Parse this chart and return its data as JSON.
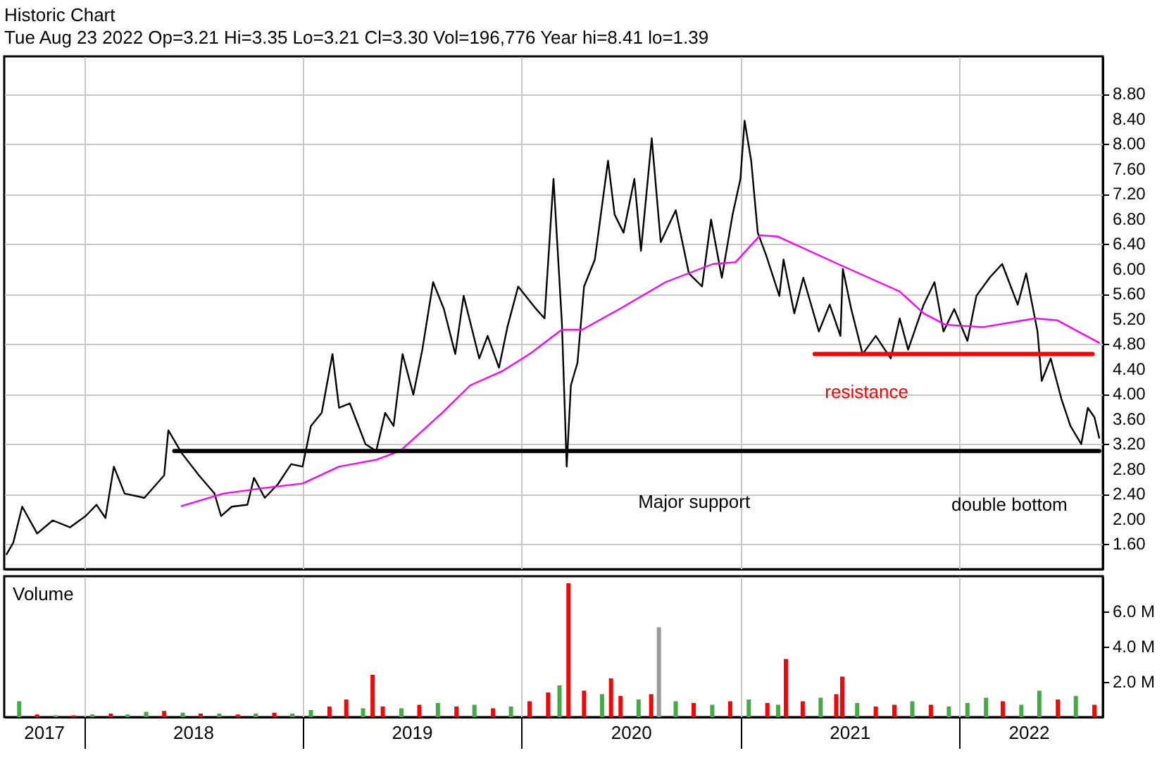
{
  "chart_data": [
    {
      "type": "line",
      "title": "Historic Chart",
      "subtitle": "Tue Aug 23 2022  Op=3.21  Hi=3.35  Lo=3.21  Cl=3.30  Vol=196,776  Year hi=8.41  lo=1.39",
      "x": [
        "2017-08-25",
        "2017-09-05",
        "2017-09-20",
        "2017-10-15",
        "2017-11-10",
        "2017-12-09",
        "2018-01-04",
        "2018-01-22",
        "2018-02-06",
        "2018-02-20",
        "2018-03-10",
        "2018-04-12",
        "2018-05-15",
        "2018-05-22",
        "2018-06-13",
        "2018-07-12",
        "2018-08-07",
        "2018-08-18",
        "2018-09-05",
        "2018-10-01",
        "2018-10-12",
        "2018-10-30",
        "2018-11-21",
        "2018-12-13",
        "2019-01-01",
        "2019-01-15",
        "2019-02-02",
        "2019-02-20",
        "2019-03-03",
        "2019-03-21",
        "2019-04-16",
        "2019-05-04",
        "2019-05-19",
        "2019-06-02",
        "2019-06-17",
        "2019-07-05",
        "2019-07-20",
        "2019-08-07",
        "2019-08-25",
        "2019-09-13",
        "2019-09-27",
        "2019-10-23",
        "2019-11-06",
        "2019-11-25",
        "2019-12-09",
        "2019-12-27",
        "2020-01-26",
        "2020-02-09",
        "2020-02-24",
        "2020-03-02",
        "2020-03-09",
        "2020-03-17",
        "2020-03-24",
        "2020-04-04",
        "2020-04-15",
        "2020-05-03",
        "2020-05-25",
        "2020-06-05",
        "2020-06-20",
        "2020-07-08",
        "2020-07-19",
        "2020-08-06",
        "2020-08-21",
        "2020-09-15",
        "2020-10-07",
        "2020-10-29",
        "2020-11-13",
        "2020-12-01",
        "2020-12-19",
        "2021-01-01",
        "2021-01-08",
        "2021-01-19",
        "2021-01-30",
        "2021-02-13",
        "2021-03-07",
        "2021-03-14",
        "2021-04-01",
        "2021-04-16",
        "2021-05-12",
        "2021-05-30",
        "2021-06-17",
        "2021-06-21",
        "2021-07-05",
        "2021-07-24",
        "2021-08-15",
        "2021-09-09",
        "2021-09-24",
        "2021-10-08",
        "2021-11-03",
        "2021-11-21",
        "2021-12-06",
        "2021-12-24",
        "2022-01-15",
        "2022-01-30",
        "2022-02-21",
        "2022-03-14",
        "2022-04-09",
        "2022-04-23",
        "2022-05-12",
        "2022-05-19",
        "2022-06-03",
        "2022-06-21",
        "2022-07-06",
        "2022-07-24",
        "2022-08-04",
        "2022-08-15",
        "2022-08-23"
      ],
      "series": [
        {
          "color": "#000000",
          "values": [
            1.44,
            1.62,
            2.2,
            1.77,
            1.98,
            1.87,
            2.05,
            2.23,
            2.02,
            2.84,
            2.41,
            2.34,
            2.7,
            3.42,
            3.06,
            2.7,
            2.41,
            2.05,
            2.2,
            2.23,
            2.66,
            2.34,
            2.56,
            2.88,
            2.84,
            3.49,
            3.7,
            4.64,
            3.78,
            3.85,
            3.2,
            3.09,
            3.7,
            3.49,
            4.64,
            3.99,
            4.71,
            5.79,
            5.36,
            4.64,
            5.57,
            4.57,
            4.93,
            4.42,
            5.07,
            5.72,
            5.36,
            5.21,
            7.44,
            6.29,
            5.14,
            2.84,
            4.14,
            4.5,
            5.72,
            6.15,
            7.73,
            6.87,
            6.58,
            7.44,
            6.29,
            8.09,
            6.43,
            6.94,
            5.93,
            5.72,
            6.79,
            5.86,
            6.87,
            7.44,
            8.37,
            7.73,
            6.58,
            6.22,
            5.57,
            6.15,
            5.29,
            5.86,
            5.0,
            5.43,
            4.93,
            6.0,
            5.36,
            4.64,
            4.93,
            4.57,
            5.21,
            4.71,
            5.43,
            5.79,
            5.0,
            5.36,
            4.85,
            5.57,
            5.86,
            6.08,
            5.43,
            5.93,
            5.0,
            4.21,
            4.57,
            3.92,
            3.49,
            3.2,
            3.78,
            3.63,
            3.3
          ]
        },
        {
          "color": "#ff00ff",
          "x": [
            "2018-06-13",
            "2018-08-22",
            "2018-10-30",
            "2019-01-01",
            "2019-03-03",
            "2019-05-04",
            "2019-06-13",
            "2019-08-22",
            "2019-10-08",
            "2019-12-01",
            "2020-01-15",
            "2020-03-06",
            "2020-03-09",
            "2020-04-12",
            "2020-06-13",
            "2020-08-29",
            "2020-11-16",
            "2020-12-24",
            "2021-02-03",
            "2021-03-04",
            "2021-06-13",
            "2021-09-24",
            "2021-11-03",
            "2021-12-09",
            "2022-02-10",
            "2022-05-08",
            "2022-06-14",
            "2022-08-23"
          ],
          "values": [
            2.21,
            2.41,
            2.5,
            2.57,
            2.84,
            2.95,
            3.09,
            3.7,
            4.14,
            4.37,
            4.64,
            5.01,
            5.03,
            5.03,
            5.36,
            5.79,
            6.08,
            6.11,
            6.54,
            6.52,
            6.08,
            5.64,
            5.29,
            5.11,
            5.07,
            5.21,
            5.18,
            4.82
          ]
        },
        {
          "color": "#000000",
          "x": [
            "2018-06-01",
            "2022-08-23"
          ],
          "values": [
            3.09,
            3.09
          ]
        },
        {
          "color": "#ff0000",
          "x": [
            "2021-05-05",
            "2022-08-12"
          ],
          "values": [
            4.64,
            4.64
          ]
        }
      ],
      "annotations": [
        "Major support",
        "resistance",
        "double bottom"
      ],
      "xlim": [
        "2017-08-21",
        "2022-08-29"
      ],
      "xticks": [
        {
          "value": "2018-01-01",
          "label": null
        },
        {
          "value": "2019-01-01",
          "label": null
        },
        {
          "value": "2020-01-01",
          "label": null
        },
        {
          "value": "2021-01-01",
          "label": null
        },
        {
          "value": "2022-01-01",
          "label": null
        }
      ],
      "ylim": [
        1.2,
        9.4
      ],
      "yticks": [
        {
          "value": 1.6,
          "label": "1.60"
        },
        {
          "value": 2,
          "label": "2.00"
        },
        {
          "value": 2.4,
          "label": "2.40"
        },
        {
          "value": 2.8,
          "label": "2.80"
        },
        {
          "value": 3.2,
          "label": "3.20"
        },
        {
          "value": 3.6,
          "label": "3.60"
        },
        {
          "value": 4,
          "label": "4.00"
        },
        {
          "value": 4.4,
          "label": "4.40"
        },
        {
          "value": 4.8,
          "label": "4.80"
        },
        {
          "value": 5.2,
          "label": "5.20"
        },
        {
          "value": 5.6,
          "label": "5.60"
        },
        {
          "value": 6,
          "label": "6.00"
        },
        {
          "value": 6.4,
          "label": "6.40"
        },
        {
          "value": 6.8,
          "label": "6.80"
        },
        {
          "value": 7.2,
          "label": "7.20"
        },
        {
          "value": 7.6,
          "label": "7.60"
        },
        {
          "value": 8,
          "label": "8.00"
        },
        {
          "value": 8.4,
          "label": "8.40"
        },
        {
          "value": 8.8,
          "label": "8.80"
        }
      ],
      "grid": true,
      "tick_labels": "y"
    },
    {
      "type": "bar",
      "title": "Volume",
      "x": [
        "2017-09-15",
        "2017-10-15",
        "2017-11-15",
        "2017-12-15",
        "2018-01-15",
        "2018-02-15",
        "2018-03-15",
        "2018-04-15",
        "2018-05-15",
        "2018-06-15",
        "2018-07-15",
        "2018-08-15",
        "2018-09-15",
        "2018-10-15",
        "2018-11-15",
        "2018-12-15",
        "2019-01-15",
        "2019-02-15",
        "2019-03-15",
        "2019-04-12",
        "2019-04-28",
        "2019-05-15",
        "2019-06-15",
        "2019-07-15",
        "2019-08-15",
        "2019-09-15",
        "2019-10-15",
        "2019-11-15",
        "2019-12-15",
        "2020-01-15",
        "2020-02-15",
        "2020-03-05",
        "2020-03-20",
        "2020-04-15",
        "2020-05-15",
        "2020-05-30",
        "2020-06-15",
        "2020-07-15",
        "2020-08-05",
        "2020-08-18",
        "2020-09-15",
        "2020-10-15",
        "2020-11-15",
        "2020-12-15",
        "2021-01-15",
        "2021-02-15",
        "2021-03-05",
        "2021-03-18",
        "2021-04-15",
        "2021-05-15",
        "2021-06-10",
        "2021-06-20",
        "2021-07-15",
        "2021-08-15",
        "2021-09-15",
        "2021-10-15",
        "2021-11-15",
        "2021-12-15",
        "2022-01-15",
        "2022-02-15",
        "2022-03-15",
        "2022-04-15",
        "2022-05-15",
        "2022-06-15",
        "2022-07-15",
        "2022-08-15"
      ],
      "values": [
        0.9,
        0.15,
        0.1,
        0.1,
        0.15,
        0.2,
        0.15,
        0.3,
        0.35,
        0.25,
        0.2,
        0.2,
        0.15,
        0.2,
        0.25,
        0.2,
        0.4,
        0.6,
        1.0,
        0.5,
        2.4,
        0.6,
        0.5,
        0.7,
        0.8,
        0.6,
        0.7,
        0.5,
        0.6,
        0.9,
        1.4,
        1.8,
        7.6,
        1.5,
        1.3,
        2.2,
        1.2,
        1.0,
        1.3,
        5.1,
        0.9,
        0.8,
        0.7,
        0.9,
        1.0,
        0.8,
        0.7,
        3.3,
        0.9,
        1.1,
        1.3,
        2.3,
        0.8,
        0.6,
        0.7,
        0.9,
        0.7,
        0.6,
        0.8,
        1.1,
        0.9,
        0.7,
        1.5,
        1.0,
        1.2,
        0.7
      ],
      "colors": [
        "#44aa44",
        "#ff0000",
        "#44aa44",
        "#ff0000",
        "#44aa44",
        "#ff0000",
        "#44aa44",
        "#44aa44",
        "#ff0000",
        "#44aa44",
        "#ff0000",
        "#44aa44",
        "#ff0000",
        "#44aa44",
        "#ff0000",
        "#44aa44",
        "#44aa44",
        "#ff0000",
        "#ff0000",
        "#44aa44",
        "#ff0000",
        "#ff0000",
        "#44aa44",
        "#ff0000",
        "#44aa44",
        "#ff0000",
        "#44aa44",
        "#ff0000",
        "#44aa44",
        "#ff0000",
        "#ff0000",
        "#44aa44",
        "#ff0000",
        "#ff0000",
        "#44aa44",
        "#ff0000",
        "#ff0000",
        "#44aa44",
        "#ff0000",
        "#999999",
        "#44aa44",
        "#ff0000",
        "#44aa44",
        "#ff0000",
        "#44aa44",
        "#ff0000",
        "#44aa44",
        "#ff0000",
        "#ff0000",
        "#44aa44",
        "#ff0000",
        "#ff0000",
        "#44aa44",
        "#ff0000",
        "#ff0000",
        "#44aa44",
        "#ff0000",
        "#44aa44",
        "#44aa44",
        "#44aa44",
        "#ff0000",
        "#44aa44",
        "#44aa44",
        "#ff0000",
        "#44aa44",
        "#ff0000"
      ],
      "xlim": [
        "2017-08-21",
        "2022-08-29"
      ],
      "xticks": [
        {
          "value": "2017-10-26",
          "label": "2017"
        },
        {
          "value": "2018-01-01",
          "label": null
        },
        {
          "value": "2018-07-02",
          "label": "2018"
        },
        {
          "value": "2019-01-01",
          "label": null
        },
        {
          "value": "2019-07-02",
          "label": "2019"
        },
        {
          "value": "2020-01-01",
          "label": null
        },
        {
          "value": "2020-07-02",
          "label": "2020"
        },
        {
          "value": "2021-01-01",
          "label": null
        },
        {
          "value": "2021-07-02",
          "label": "2021"
        },
        {
          "value": "2022-01-01",
          "label": null
        },
        {
          "value": "2022-04-27",
          "label": "2022"
        }
      ],
      "ylim": [
        0,
        8
      ],
      "yticks": [
        {
          "value": 2,
          "label": "2.0 M"
        },
        {
          "value": 4,
          "label": "4.0 M"
        },
        {
          "value": 6,
          "label": "6.0 M"
        }
      ],
      "grid": "x"
    }
  ]
}
